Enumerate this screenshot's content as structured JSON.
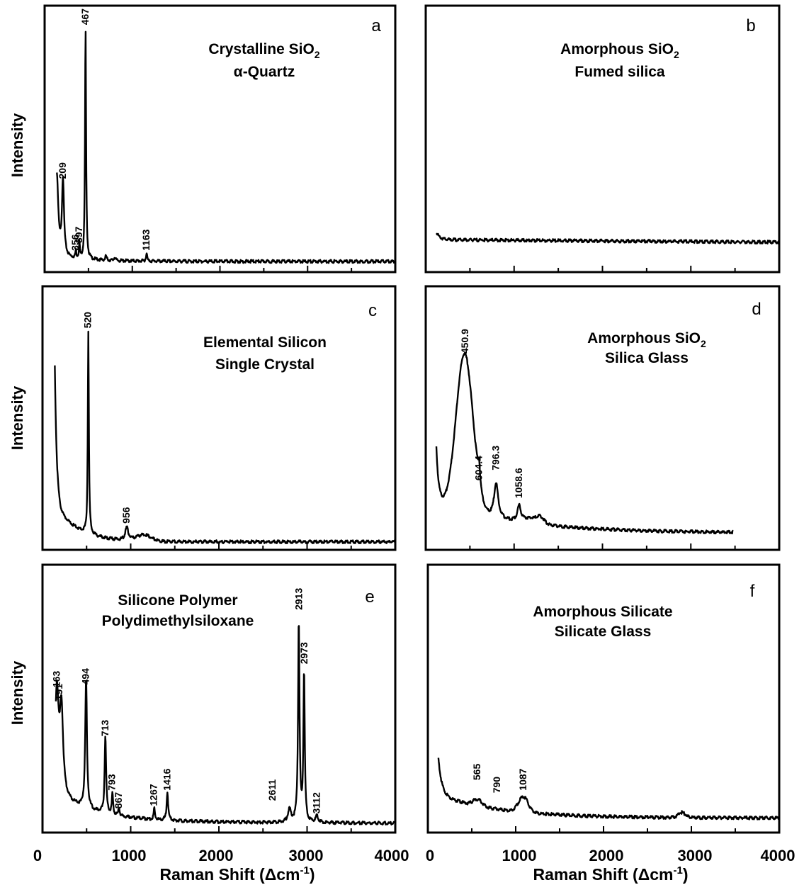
{
  "figure": {
    "y_axis_label": "Intensity",
    "x_axis_label_main": "Raman Shift (Δcm",
    "x_axis_label_sup": "-1",
    "x_axis_label_close": ")",
    "x_ticks": [
      "0",
      "1000",
      "2000",
      "3000",
      "4000"
    ]
  },
  "chart_data": [
    {
      "type": "line",
      "letter": "a",
      "title_line1": "Crystalline SiO",
      "title_line1_sub": "2",
      "title_line2": "α-Quartz",
      "xlim": [
        0,
        4000
      ],
      "peaks": [
        {
          "label": "209",
          "x": 209,
          "y": 0.33
        },
        {
          "label": "356",
          "x": 356,
          "y": 0.05
        },
        {
          "label": "397",
          "x": 397,
          "y": 0.08
        },
        {
          "label": "467",
          "x": 467,
          "y": 0.93
        },
        {
          "label": "1163",
          "x": 1163,
          "y": 0.05
        }
      ]
    },
    {
      "type": "line",
      "letter": "b",
      "title_line1": "Amorphous SiO",
      "title_line1_sub": "2",
      "title_line2": "Fumed silica",
      "xlim": [
        0,
        4000
      ],
      "peaks": []
    },
    {
      "type": "line",
      "letter": "c",
      "title_line1": "Elemental Silicon",
      "title_line1_sub": "",
      "title_line2": "Single Crystal",
      "xlim": [
        0,
        4000
      ],
      "peaks": [
        {
          "label": "520",
          "x": 520,
          "y": 0.84
        },
        {
          "label": "956",
          "x": 956,
          "y": 0.07
        }
      ]
    },
    {
      "type": "line",
      "letter": "d",
      "title_line1": "Amorphous SiO",
      "title_line1_sub": "2",
      "title_line2": "Silica Glass",
      "xlim": [
        0,
        4000
      ],
      "peaks": [
        {
          "label": "450.9",
          "x": 450.9,
          "y": 0.74
        },
        {
          "label": "604.4",
          "x": 604.4,
          "y": 0.24
        },
        {
          "label": "796.3",
          "x": 796.3,
          "y": 0.28
        },
        {
          "label": "1058.6",
          "x": 1058.6,
          "y": 0.17
        }
      ]
    },
    {
      "type": "line",
      "letter": "e",
      "title_line1": "Silicone Polymer",
      "title_line1_sub": "",
      "title_line2": "Polydimethylsiloxane",
      "xlim": [
        0,
        4000
      ],
      "peaks": [
        {
          "label": "163",
          "x": 163,
          "y": 0.53
        },
        {
          "label": "191",
          "x": 191,
          "y": 0.48
        },
        {
          "label": "494",
          "x": 494,
          "y": 0.54
        },
        {
          "label": "713",
          "x": 713,
          "y": 0.34
        },
        {
          "label": "793",
          "x": 793,
          "y": 0.13
        },
        {
          "label": "867",
          "x": 867,
          "y": 0.06
        },
        {
          "label": "1267",
          "x": 1267,
          "y": 0.07
        },
        {
          "label": "1416",
          "x": 1416,
          "y": 0.13
        },
        {
          "label": "2611",
          "x": 2611,
          "y": 0.09
        },
        {
          "label": "2913",
          "x": 2913,
          "y": 0.83
        },
        {
          "label": "2973",
          "x": 2973,
          "y": 0.62
        },
        {
          "label": "3112",
          "x": 3112,
          "y": 0.04
        }
      ]
    },
    {
      "type": "line",
      "letter": "f",
      "title_line1": "Amorphous Silicate",
      "title_line1_sub": "",
      "title_line2": "Silicate Glass",
      "xlim": [
        0,
        4000
      ],
      "peaks": [
        {
          "label": "565",
          "x": 565,
          "y": 0.17
        },
        {
          "label": "790",
          "x": 790,
          "y": 0.12
        },
        {
          "label": "1087",
          "x": 1087,
          "y": 0.13
        }
      ]
    }
  ]
}
